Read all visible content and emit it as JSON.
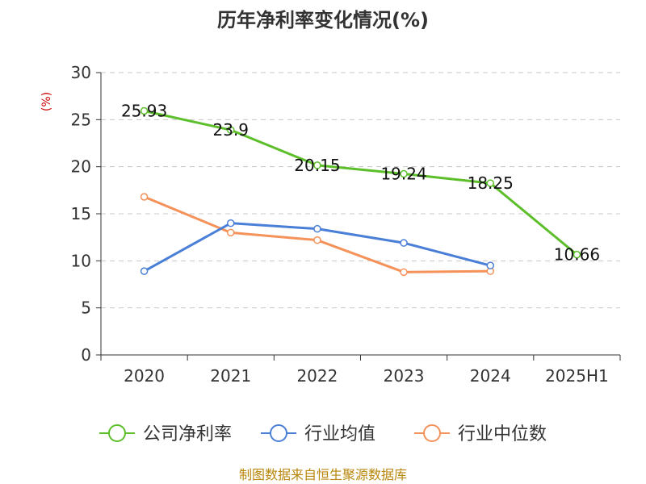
{
  "chart_data": {
    "type": "line",
    "title": "历年净利率变化情况(%)",
    "ylabel": "(%)",
    "xlabel": "",
    "categories": [
      "2020",
      "2021",
      "2022",
      "2023",
      "2024",
      "2025H1"
    ],
    "ylim": [
      0,
      30
    ],
    "yticks": [
      0,
      5,
      10,
      15,
      20,
      25,
      30
    ],
    "grid": true,
    "legend_position": "bottom",
    "series": [
      {
        "name": "公司净利率",
        "color": "#5cbf2a",
        "values": [
          25.93,
          23.9,
          20.15,
          19.24,
          18.25,
          10.66
        ],
        "data_labels": [
          "25.93",
          "23.9",
          "20.15",
          "19.24",
          "18.25",
          "10.66"
        ]
      },
      {
        "name": "行业均值",
        "color": "#4a7fd8",
        "values": [
          8.9,
          14.0,
          13.4,
          11.9,
          9.5,
          null
        ],
        "data_labels": null
      },
      {
        "name": "行业中位数",
        "color": "#f5925a",
        "values": [
          16.8,
          13.0,
          12.2,
          8.8,
          8.9,
          null
        ],
        "data_labels": null
      }
    ]
  },
  "source": "制图数据来自恒生聚源数据库"
}
